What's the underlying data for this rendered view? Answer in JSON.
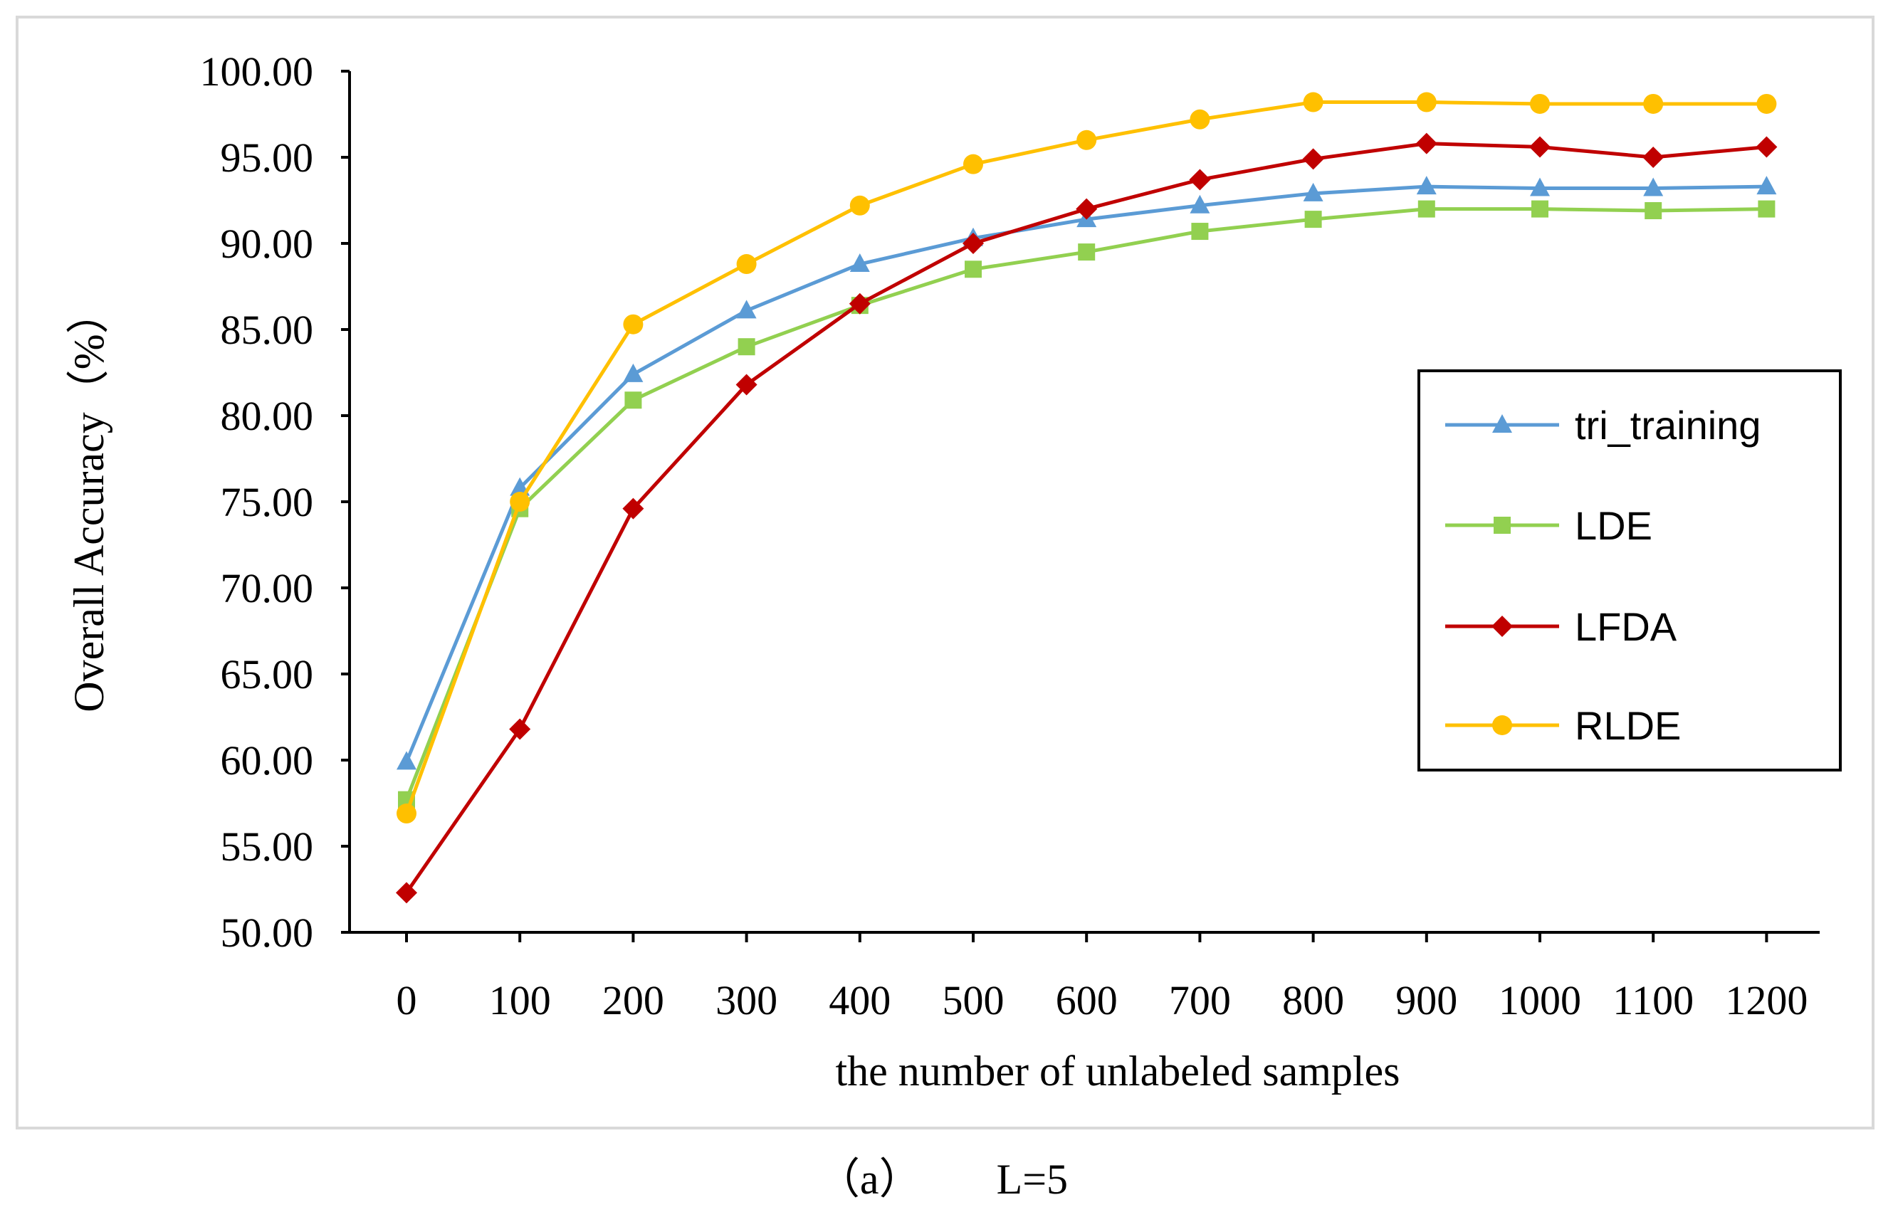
{
  "chart_data": {
    "type": "line",
    "title": "",
    "xlabel": "the number of unlabeled samples",
    "ylabel": "Overall Accuracy（%）",
    "categories": [
      "0",
      "100",
      "200",
      "300",
      "400",
      "500",
      "600",
      "700",
      "800",
      "900",
      "1000",
      "1100",
      "1200"
    ],
    "ylim": [
      50,
      100
    ],
    "yticks": [
      "50.00",
      "55.00",
      "60.00",
      "65.00",
      "70.00",
      "75.00",
      "80.00",
      "85.00",
      "90.00",
      "95.00",
      "100.00"
    ],
    "grid": false,
    "legend_position": "right",
    "series": [
      {
        "name": "tri_training",
        "color": "#5b9bd5",
        "marker": "triangle",
        "values": [
          59.9,
          75.8,
          82.4,
          86.1,
          88.8,
          90.3,
          91.4,
          92.2,
          92.9,
          93.3,
          93.2,
          93.2,
          93.3
        ]
      },
      {
        "name": "LDE",
        "color": "#92d050",
        "marker": "square",
        "values": [
          57.7,
          74.6,
          80.9,
          84.0,
          86.4,
          88.5,
          89.5,
          90.7,
          91.4,
          92.0,
          92.0,
          91.9,
          92.0
        ]
      },
      {
        "name": "LFDA",
        "color": "#c00000",
        "marker": "diamond",
        "values": [
          52.3,
          61.8,
          74.6,
          81.8,
          86.5,
          90.0,
          92.0,
          93.7,
          94.9,
          95.8,
          95.6,
          95.0,
          95.6
        ]
      },
      {
        "name": "RLDE",
        "color": "#ffc000",
        "marker": "circle",
        "values": [
          56.9,
          75.0,
          85.3,
          88.8,
          92.2,
          94.6,
          96.0,
          97.2,
          98.2,
          98.2,
          98.1,
          98.1,
          98.1
        ]
      }
    ]
  },
  "caption": "（a）       L=5"
}
